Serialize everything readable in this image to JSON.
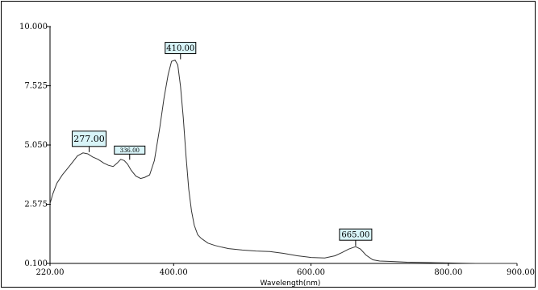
{
  "chart_data": {
    "type": "line",
    "title": "",
    "xlabel": "Wavelength(nm)",
    "ylabel": "",
    "xlim": [
      220,
      900
    ],
    "ylim": [
      0.1,
      10.0
    ],
    "x_ticks": [
      "220.00",
      "400.00",
      "600.00",
      "800.00",
      "900.00"
    ],
    "x_tick_values": [
      220,
      400,
      600,
      800,
      900
    ],
    "y_ticks": [
      "0.100",
      "2.575",
      "5.050",
      "7.525",
      "10.000"
    ],
    "y_tick_values": [
      0.1,
      2.575,
      5.05,
      7.525,
      10.0
    ],
    "grid": false,
    "legend": "none",
    "line_color": "#333333",
    "label_box_color": "#d8f4f8",
    "series": [
      {
        "x": [
          220,
          224,
          230,
          238,
          245,
          252,
          260,
          268,
          275,
          282,
          290,
          298,
          305,
          312,
          318,
          323,
          328,
          333,
          338,
          345,
          352,
          358,
          365,
          372,
          380,
          386,
          392,
          397,
          402,
          406,
          410,
          414,
          418,
          422,
          426,
          430,
          435,
          440,
          445,
          450,
          460,
          470,
          480,
          500,
          520,
          540,
          560,
          580,
          600,
          620,
          635,
          645,
          655,
          665,
          672,
          680,
          690,
          700,
          720,
          740,
          760,
          780,
          800,
          820,
          840,
          860,
          880,
          900
        ],
        "y": [
          2.6,
          3.0,
          3.45,
          3.8,
          4.05,
          4.3,
          4.6,
          4.72,
          4.68,
          4.55,
          4.45,
          4.3,
          4.2,
          4.15,
          4.3,
          4.45,
          4.4,
          4.25,
          4.0,
          3.75,
          3.65,
          3.7,
          3.8,
          4.4,
          5.8,
          7.0,
          8.0,
          8.55,
          8.6,
          8.4,
          7.5,
          6.2,
          4.6,
          3.2,
          2.3,
          1.7,
          1.3,
          1.15,
          1.05,
          0.95,
          0.85,
          0.78,
          0.72,
          0.66,
          0.62,
          0.6,
          0.52,
          0.42,
          0.35,
          0.33,
          0.42,
          0.55,
          0.7,
          0.8,
          0.7,
          0.45,
          0.25,
          0.2,
          0.18,
          0.15,
          0.14,
          0.13,
          0.12,
          0.11,
          0.1,
          0.1,
          0.1,
          0.1
        ]
      }
    ],
    "annotations": [
      {
        "label": "277.00",
        "x": 277,
        "y": 4.72
      },
      {
        "label": "336.00",
        "x": 336,
        "y": 4.4
      },
      {
        "label": "410.00",
        "x": 410,
        "y": 8.6
      },
      {
        "label": "665.00",
        "x": 665,
        "y": 0.8
      }
    ]
  }
}
